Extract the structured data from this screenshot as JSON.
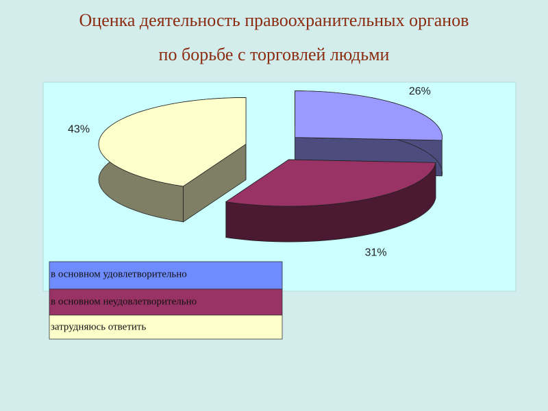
{
  "chart_data": {
    "type": "pie3d",
    "title": [
      "Оценка деятельность правоохранительных органов",
      "по борьбе с торговлей людьми"
    ],
    "categories": [
      "в основном удовлетворительно",
      "в основном неудовлетворительно",
      "затрудняюсь ответить"
    ],
    "values": [
      26,
      31,
      43
    ],
    "value_labels": [
      "26%",
      "31%",
      "43%"
    ],
    "colors": [
      "#9999ff",
      "#993366",
      "#ffffcc"
    ]
  }
}
